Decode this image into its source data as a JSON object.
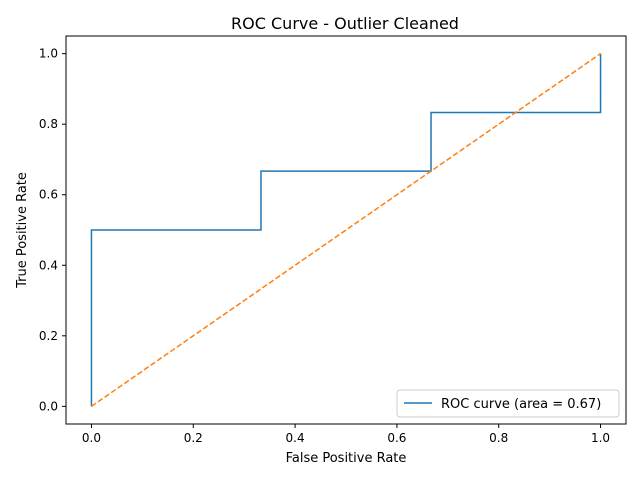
{
  "chart_data": {
    "type": "line",
    "title": "ROC Curve - Outlier Cleaned",
    "xlabel": "False Positive Rate",
    "ylabel": "True Positive Rate",
    "xlim": [
      -0.05,
      1.05
    ],
    "ylim": [
      -0.05,
      1.05
    ],
    "xticks": [
      0.0,
      0.2,
      0.4,
      0.6,
      0.8,
      1.0
    ],
    "yticks": [
      0.0,
      0.2,
      0.4,
      0.6,
      0.8,
      1.0
    ],
    "xtick_labels": [
      "0.0",
      "0.2",
      "0.4",
      "0.6",
      "0.8",
      "1.0"
    ],
    "ytick_labels": [
      "0.0",
      "0.2",
      "0.4",
      "0.6",
      "0.8",
      "1.0"
    ],
    "grid": false,
    "legend_position": "lower-right",
    "series": [
      {
        "name": "ROC curve (area = 0.67)",
        "color": "#1f77b4",
        "style": "solid",
        "x": [
          0.0,
          0.0,
          0.333,
          0.333,
          0.667,
          0.667,
          1.0,
          1.0
        ],
        "y": [
          0.0,
          0.5,
          0.5,
          0.667,
          0.667,
          0.833,
          0.833,
          1.0
        ]
      },
      {
        "color": "#ff7f0e",
        "style": "dashed",
        "x": [
          0.0,
          1.0
        ],
        "y": [
          0.0,
          1.0
        ]
      }
    ]
  }
}
